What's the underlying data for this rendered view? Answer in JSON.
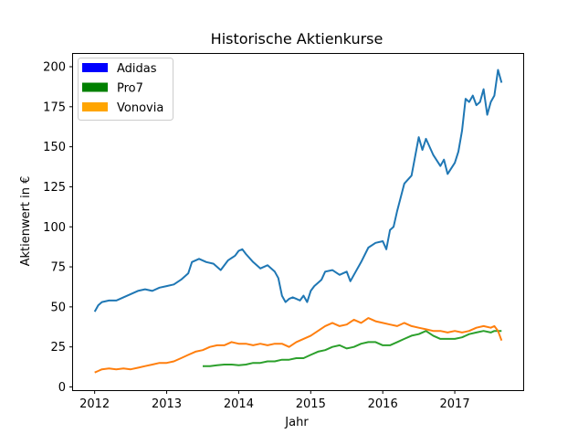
{
  "chart_data": {
    "type": "line",
    "title": "Historische Aktienkurse",
    "xlabel": "Jahr",
    "ylabel": "Aktienwert in €",
    "xlim": [
      2011.7,
      2017.95
    ],
    "ylim": [
      -2,
      208
    ],
    "x_ticks": [
      2012,
      2013,
      2014,
      2015,
      2016,
      2017
    ],
    "y_ticks": [
      0,
      25,
      50,
      75,
      100,
      125,
      150,
      175,
      200
    ],
    "grid": false,
    "legend_position": "top-left",
    "legend": [
      {
        "label": "Adidas",
        "color": "#0000ff"
      },
      {
        "label": "Pro7",
        "color": "#008000"
      },
      {
        "label": "Vonovia",
        "color": "#ffa500"
      }
    ],
    "series": [
      {
        "color": "#1f77b4",
        "x": [
          2012.0,
          2012.05,
          2012.1,
          2012.2,
          2012.3,
          2012.4,
          2012.5,
          2012.6,
          2012.7,
          2012.8,
          2012.9,
          2013.0,
          2013.1,
          2013.2,
          2013.3,
          2013.35,
          2013.45,
          2013.55,
          2013.65,
          2013.75,
          2013.85,
          2013.95,
          2014.0,
          2014.05,
          2014.1,
          2014.2,
          2014.3,
          2014.4,
          2014.5,
          2014.55,
          2014.6,
          2014.65,
          2014.7,
          2014.75,
          2014.8,
          2014.85,
          2014.9,
          2014.95,
          2015.0,
          2015.05,
          2015.1,
          2015.15,
          2015.2,
          2015.3,
          2015.4,
          2015.5,
          2015.55,
          2015.6,
          2015.7,
          2015.8,
          2015.9,
          2016.0,
          2016.05,
          2016.1,
          2016.15,
          2016.2,
          2016.3,
          2016.4,
          2016.5,
          2016.55,
          2016.6,
          2016.7,
          2016.8,
          2016.85,
          2016.9,
          2017.0,
          2017.05,
          2017.1,
          2017.15,
          2017.2,
          2017.25,
          2017.3,
          2017.35,
          2017.4,
          2017.45,
          2017.5,
          2017.55,
          2017.6,
          2017.65
        ],
        "y": [
          47,
          51,
          53,
          54,
          54,
          56,
          58,
          60,
          61,
          60,
          62,
          63,
          64,
          67,
          71,
          78,
          80,
          78,
          77,
          73,
          79,
          82,
          85,
          86,
          83,
          78,
          74,
          76,
          72,
          68,
          57,
          53,
          55,
          56,
          55,
          54,
          57,
          53,
          60,
          63,
          65,
          67,
          72,
          73,
          70,
          72,
          66,
          70,
          78,
          87,
          90,
          91,
          86,
          98,
          100,
          110,
          127,
          132,
          156,
          148,
          155,
          145,
          138,
          142,
          133,
          140,
          147,
          160,
          180,
          178,
          182,
          176,
          178,
          186,
          170,
          178,
          182,
          198,
          190
        ]
      },
      {
        "color": "#2ca02c",
        "x": [
          2013.5,
          2013.6,
          2013.7,
          2013.8,
          2013.9,
          2014.0,
          2014.1,
          2014.2,
          2014.3,
          2014.4,
          2014.5,
          2014.6,
          2014.7,
          2014.8,
          2014.9,
          2015.0,
          2015.1,
          2015.2,
          2015.3,
          2015.4,
          2015.5,
          2015.6,
          2015.7,
          2015.8,
          2015.9,
          2016.0,
          2016.1,
          2016.2,
          2016.3,
          2016.4,
          2016.5,
          2016.6,
          2016.7,
          2016.8,
          2016.9,
          2017.0,
          2017.1,
          2017.2,
          2017.3,
          2017.4,
          2017.5,
          2017.55,
          2017.6,
          2017.65
        ],
        "y": [
          13,
          13,
          13.5,
          14,
          14,
          13.5,
          14,
          15,
          15,
          16,
          16,
          17,
          17,
          18,
          18,
          20,
          22,
          23,
          25,
          26,
          24,
          25,
          27,
          28,
          28,
          26,
          26,
          28,
          30,
          32,
          33,
          35,
          32,
          30,
          30,
          30,
          31,
          33,
          34,
          35,
          34,
          35,
          35,
          35
        ]
      },
      {
        "color": "#ff7f0e",
        "x": [
          2012.0,
          2012.05,
          2012.1,
          2012.2,
          2012.3,
          2012.4,
          2012.5,
          2012.6,
          2012.7,
          2012.8,
          2012.9,
          2013.0,
          2013.1,
          2013.2,
          2013.3,
          2013.4,
          2013.5,
          2013.6,
          2013.7,
          2013.8,
          2013.9,
          2014.0,
          2014.1,
          2014.2,
          2014.3,
          2014.4,
          2014.5,
          2014.6,
          2014.7,
          2014.8,
          2014.9,
          2015.0,
          2015.1,
          2015.2,
          2015.3,
          2015.4,
          2015.5,
          2015.6,
          2015.7,
          2015.8,
          2015.9,
          2016.0,
          2016.1,
          2016.2,
          2016.3,
          2016.4,
          2016.5,
          2016.6,
          2016.7,
          2016.8,
          2016.9,
          2017.0,
          2017.1,
          2017.2,
          2017.3,
          2017.4,
          2017.5,
          2017.55,
          2017.6,
          2017.65
        ],
        "y": [
          9,
          10,
          11,
          11.5,
          11,
          11.5,
          11,
          12,
          13,
          14,
          15,
          15,
          16,
          18,
          20,
          22,
          23,
          25,
          26,
          26,
          28,
          27,
          27,
          26,
          27,
          26,
          27,
          27,
          25,
          28,
          30,
          32,
          35,
          38,
          40,
          38,
          39,
          42,
          40,
          43,
          41,
          40,
          39,
          38,
          40,
          38,
          37,
          36,
          35,
          35,
          34,
          35,
          34,
          35,
          37,
          38,
          37,
          38,
          35,
          29
        ]
      }
    ]
  }
}
